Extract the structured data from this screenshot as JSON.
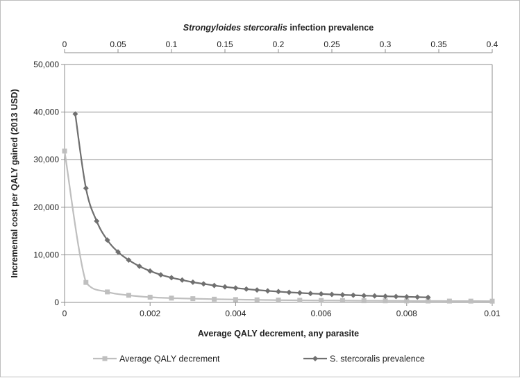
{
  "chart_data": {
    "type": "line",
    "title": "",
    "xlabel": "Average QALY decrement, any parasite",
    "ylabel": "Incremental cost per QALY gained (2013 USD)",
    "x2label": {
      "italic": "Strongyloides stercoralis",
      "rest": " infection prevalence"
    },
    "xlim": [
      0,
      0.01
    ],
    "x2lim": [
      0,
      0.4
    ],
    "ylim": [
      0,
      50000
    ],
    "x_ticks": [
      "0",
      "0.002",
      "0.004",
      "0.006",
      "0.008",
      "0.01"
    ],
    "x_tick_values": [
      0,
      0.002,
      0.004,
      0.006,
      0.008,
      0.01
    ],
    "x2_ticks": [
      "0",
      "0.05",
      "0.1",
      "0.15",
      "0.2",
      "0.25",
      "0.3",
      "0.35",
      "0.4"
    ],
    "x2_tick_values": [
      0,
      0.05,
      0.1,
      0.15,
      0.2,
      0.25,
      0.3,
      0.35,
      0.4
    ],
    "y_ticks": [
      "0",
      "10,000",
      "20,000",
      "30,000",
      "40,000",
      "50,000"
    ],
    "y_tick_values": [
      0,
      10000,
      20000,
      30000,
      40000,
      50000
    ],
    "grid": true,
    "legend_position": "bottom",
    "series": [
      {
        "name": "Average QALY decrement",
        "axis": "x",
        "marker": "square",
        "color": "#bfbfbf",
        "x": [
          0,
          0.0005,
          0.001,
          0.0015,
          0.002,
          0.0025,
          0.003,
          0.0035,
          0.004,
          0.0045,
          0.005,
          0.0055,
          0.006,
          0.0065,
          0.007,
          0.0075,
          0.008,
          0.0085,
          0.009,
          0.0095,
          0.01
        ],
        "y": [
          31800,
          4200,
          2200,
          1500,
          1100,
          900,
          780,
          680,
          600,
          540,
          480,
          440,
          410,
          380,
          350,
          330,
          310,
          290,
          280,
          270,
          260
        ]
      },
      {
        "name": "S. stercoralis prevalence",
        "axis": "x2",
        "marker": "diamond",
        "color": "#707070",
        "x": [
          0.01,
          0.02,
          0.03,
          0.04,
          0.05,
          0.06,
          0.07,
          0.08,
          0.09,
          0.1,
          0.11,
          0.12,
          0.13,
          0.14,
          0.15,
          0.16,
          0.17,
          0.18,
          0.19,
          0.2,
          0.21,
          0.22,
          0.23,
          0.24,
          0.25,
          0.26,
          0.27,
          0.28,
          0.29,
          0.3,
          0.31,
          0.32,
          0.33,
          0.34
        ],
        "y": [
          39600,
          24000,
          17100,
          13100,
          10600,
          8900,
          7600,
          6600,
          5800,
          5200,
          4700,
          4250,
          3900,
          3560,
          3270,
          3020,
          2800,
          2600,
          2420,
          2270,
          2120,
          2000,
          1880,
          1780,
          1680,
          1590,
          1510,
          1430,
          1360,
          1290,
          1230,
          1170,
          1110,
          1060
        ]
      }
    ]
  }
}
